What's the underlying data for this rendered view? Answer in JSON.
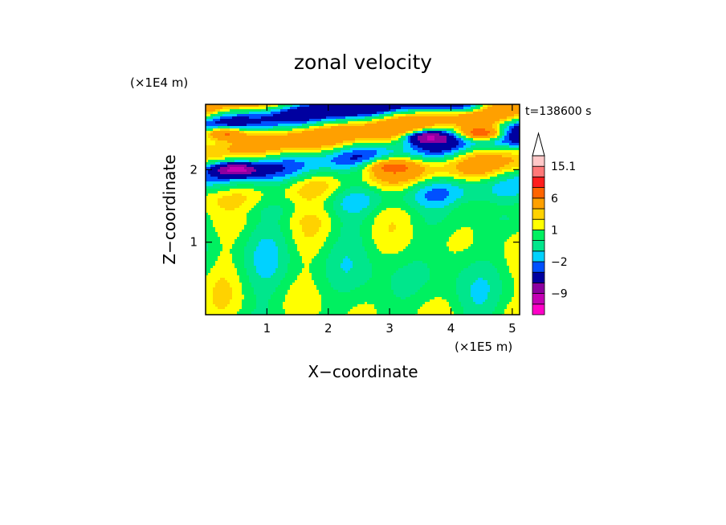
{
  "chart_data": {
    "type": "heatmap",
    "title": "zonal velocity",
    "xlabel": "X−coordinate",
    "ylabel": "Z−coordinate",
    "x_scale_label": "(×1E5 m)",
    "y_scale_label": "(×1E4 m)",
    "time_label": "t=138600 s",
    "xlim": [
      0,
      5.12
    ],
    "ylim": [
      0,
      2.9
    ],
    "x_ticks": [
      1,
      2,
      3,
      4,
      5
    ],
    "x_tick_labels": [
      "1",
      "2",
      "3",
      "4",
      "5"
    ],
    "y_ticks": [
      1,
      2
    ],
    "y_tick_labels": [
      "1",
      "2"
    ],
    "colorbar": {
      "levels": [
        -15,
        -12,
        -9,
        -6,
        -3,
        -2,
        -1,
        0,
        1,
        2,
        3,
        6,
        9,
        12,
        15.1
      ],
      "colors": [
        "#ff00c8",
        "#c400b4",
        "#8c00a0",
        "#0000a0",
        "#0050ff",
        "#00d2ff",
        "#00e68c",
        "#00f060",
        "#ffff00",
        "#ffd200",
        "#ffa000",
        "#ff6400",
        "#ff1e1e",
        "#ff7878",
        "#ffc8c8"
      ],
      "tick_values": [
        15.1,
        6,
        1,
        -2,
        -9
      ],
      "tick_labels": [
        "15.1",
        "6",
        "1",
        "−2",
        "−9"
      ]
    },
    "features": [
      {
        "x": 3.6,
        "z": 2.45,
        "value": -6
      },
      {
        "x": 0.5,
        "z": 2.0,
        "value": -6
      },
      {
        "x": 0.3,
        "z": 2.5,
        "value": 6
      },
      {
        "x": 3.0,
        "z": 2.05,
        "value": 3
      },
      {
        "x": 4.5,
        "z": 2.5,
        "value": 6
      },
      {
        "x": 4.3,
        "z": 2.85,
        "value": -3
      }
    ]
  }
}
